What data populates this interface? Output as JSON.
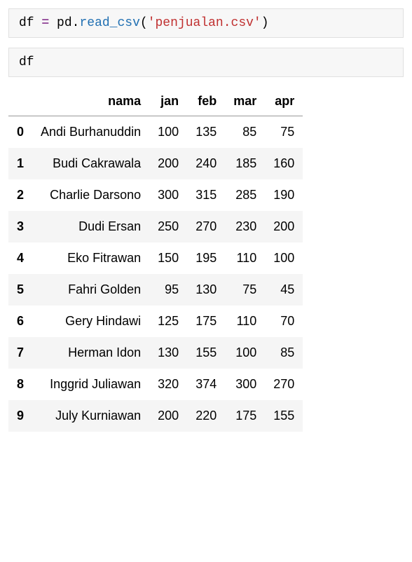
{
  "cells": {
    "code1": {
      "tokens": {
        "var": "df",
        "sp1": " ",
        "op": "=",
        "sp2": " ",
        "obj": "pd",
        "dot": ".",
        "fn": "read_csv",
        "lp": "(",
        "str": "'penjualan.csv'",
        "rp": ")"
      }
    },
    "code2": {
      "text": "df"
    }
  },
  "dataframe": {
    "columns": [
      "nama",
      "jan",
      "feb",
      "mar",
      "apr"
    ],
    "index": [
      "0",
      "1",
      "2",
      "3",
      "4",
      "5",
      "6",
      "7",
      "8",
      "9"
    ],
    "rows": [
      [
        "Andi Burhanuddin",
        "100",
        "135",
        "85",
        "75"
      ],
      [
        "Budi Cakrawala",
        "200",
        "240",
        "185",
        "160"
      ],
      [
        "Charlie Darsono",
        "300",
        "315",
        "285",
        "190"
      ],
      [
        "Dudi Ersan",
        "250",
        "270",
        "230",
        "200"
      ],
      [
        "Eko Fitrawan",
        "150",
        "195",
        "110",
        "100"
      ],
      [
        "Fahri Golden",
        "95",
        "130",
        "75",
        "45"
      ],
      [
        "Gery Hindawi",
        "125",
        "175",
        "110",
        "70"
      ],
      [
        "Herman Idon",
        "130",
        "155",
        "100",
        "85"
      ],
      [
        "Inggrid Juliawan",
        "320",
        "374",
        "300",
        "270"
      ],
      [
        "July Kurniawan",
        "200",
        "220",
        "175",
        "155"
      ]
    ],
    "style": {
      "header_border_color": "#999999",
      "row_even_bg": "#f5f5f5",
      "row_odd_bg": "#ffffff",
      "font_size": 18,
      "cell_padding_v": 12,
      "cell_padding_h": 12
    }
  },
  "code_style": {
    "bg": "#f7f7f7",
    "border": "#e0e0e0",
    "font_size": 18,
    "colors": {
      "var": "#000000",
      "op": "#9a56a0",
      "obj": "#000000",
      "fn": "#1f6fb2",
      "str": "#c03030",
      "pn": "#000000"
    }
  }
}
